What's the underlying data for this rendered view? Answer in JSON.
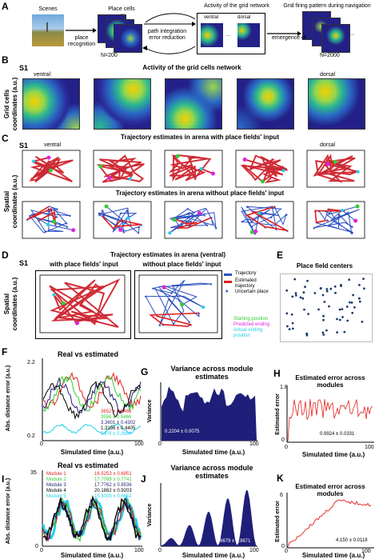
{
  "panels": {
    "A": {
      "label": "A",
      "scenes": "Scenes",
      "place_cells": "Place cells",
      "place_recognition": "place\nrecognition",
      "n_place": "N=200",
      "pi_error": "path integration\nerror reduction",
      "activity_grid": "Activity of the grid network",
      "ventral": "ventral",
      "dorsal": "dorsal",
      "emergence": "emergence of",
      "n_grid": "N=2000",
      "grid_pattern": "Grid firing pattern during navigation",
      "dots": "..."
    },
    "B": {
      "label": "B",
      "s1": "S1",
      "title": "Activity of the grid cells network",
      "ventral": "ventral",
      "dorsal": "dorsal",
      "ylabel": "Grid cells\ncoordinates (a.u.)"
    },
    "C": {
      "label": "C",
      "s1": "S1",
      "title_with": "Trajectory estimates in arena with place fields' input",
      "title_without": "Trajectory estimates in arena without place fields' input",
      "ventral": "ventral",
      "dorsal": "dorsal",
      "ylabel": "Spatial\ncoordinates (a.u.)"
    },
    "D": {
      "label": "D",
      "s1": "S1",
      "title": "Trajectory estimates in arena (ventral)",
      "with": "with place fields' input",
      "without": "without place fields' input",
      "ylabel": "Spatial\ncoordinates (a.u.)",
      "legend": [
        "Trajectory",
        "Estimated trajectory",
        "Uncertain place"
      ],
      "legend2": [
        "Starting position",
        "Predicted ending",
        "Actual ending position"
      ]
    },
    "E": {
      "label": "E",
      "title": "Place field centers"
    },
    "F": {
      "label": "F",
      "title": "Real vs estimated",
      "ylabel": "Abs. distance error (a.u.)",
      "xlabel": "Simulated time (a.u.)",
      "yticks": [
        "2.2",
        "0.2"
      ],
      "xticks": [
        "0",
        "100"
      ],
      "values": [
        "3652 ± 0.6466",
        "3556 ± 0.5466",
        "3.3601 ± 0.4302",
        "1.3186 ± 0.4405",
        "5479 ± 0.2604"
      ]
    },
    "G": {
      "label": "G",
      "title": "Variance across module\nestimates",
      "ylabel": "Variance",
      "xlabel": "Simulated time (a.u.)",
      "xticks": [
        "0",
        "100"
      ],
      "value": "0.2204 ± 0.0075"
    },
    "H": {
      "label": "H",
      "title": "Estimated error across modules",
      "ylabel": "Estimated error",
      "xlabel": "Simulated time (a.u.)",
      "yticks": [
        "1.8",
        "0"
      ],
      "xticks": [
        "0",
        "100"
      ],
      "value": "0.9924 ± 0.0331"
    },
    "I": {
      "label": "I",
      "title": "Real vs estimated",
      "ylabel": "Abs. distance error (a.u.)",
      "xlabel": "Simulated time (a.u.)",
      "yticks": [
        "35",
        "0"
      ],
      "xticks": [
        "0",
        "100"
      ],
      "modules": [
        "Module 1",
        "Module 2",
        "Module 3",
        "Module 4",
        "Module 5"
      ],
      "values": [
        "16.5253 ± 0.6951",
        "17.7099 ± 0.7741",
        "17.7762 ± 0.8536",
        "20.1882 ± 0.9203",
        "15.5009 ± 0.6652"
      ]
    },
    "J": {
      "label": "J",
      "title": "Variance across module\nestimates",
      "ylabel": "Variance",
      "xlabel": "Simulated time (a.u.)",
      "xticks": [
        "0",
        "100"
      ],
      "value": "9.6679 ± 0.9671"
    },
    "K": {
      "label": "K",
      "title": "Estimated error across modules",
      "ylabel": "Estimated error",
      "xlabel": "Simulated time (a.u.)",
      "yticks": [
        "6",
        "0"
      ],
      "xticks": [
        "0",
        "100"
      ],
      "value": "4.150 ± 0.0118"
    }
  },
  "colors": {
    "red": "#e0201e",
    "blue": "#2b4fc0",
    "navy": "#1f1f7a",
    "green": "#33cc33",
    "magenta": "#e020e0",
    "cyan": "#22cfe8"
  }
}
